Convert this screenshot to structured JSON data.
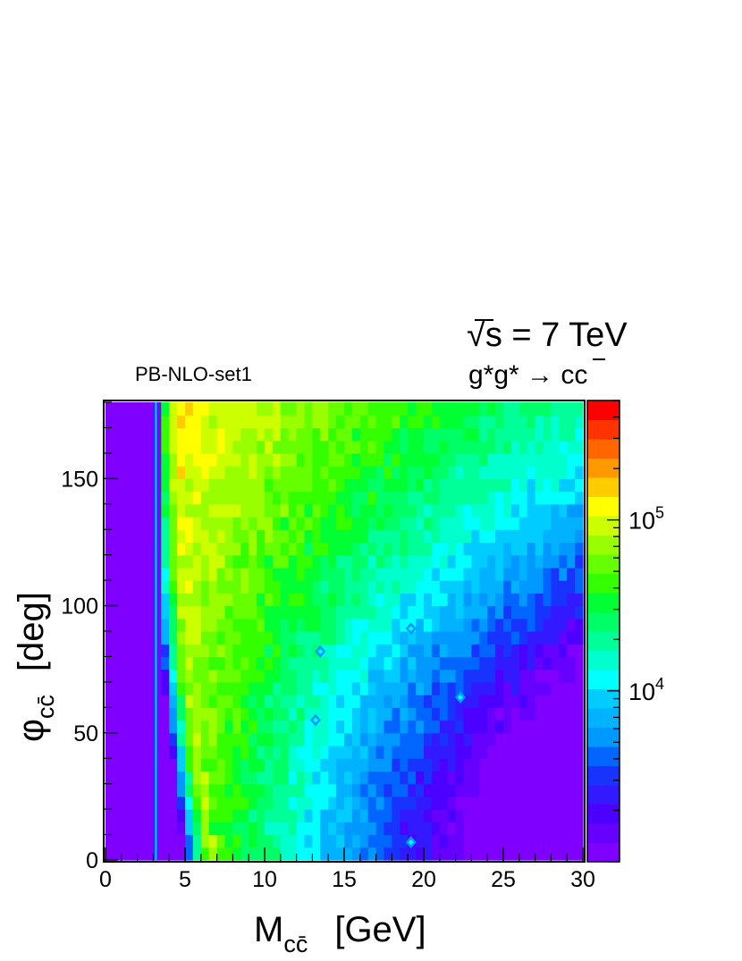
{
  "chart_data": {
    "type": "heatmap",
    "title": "√s = 7 TeV",
    "title_sqrt": "√",
    "title_rest": "s = 7 TeV",
    "subtitle_pre": "g*g* → c",
    "subtitle_bar": "c",
    "label_left": "PB-NLO-set1",
    "xlabel": "M",
    "xlabel_sub": "cc̄",
    "xlabel_unit": "[GeV]",
    "ylabel": "φ",
    "ylabel_sub": "cc̄",
    "ylabel_unit": "[deg]",
    "xlim": [
      0,
      30
    ],
    "ylim": [
      0,
      180
    ],
    "x_ticks": [
      0,
      5,
      10,
      15,
      20,
      25,
      30
    ],
    "y_ticks": [
      0,
      50,
      100,
      150
    ],
    "z_scale": "log",
    "zlim": [
      1000,
      500000
    ],
    "colorbar_labels": [
      {
        "value": 10000,
        "base": "10",
        "exp": "4"
      },
      {
        "value": 100000,
        "base": "10",
        "exp": "5"
      }
    ],
    "palette": [
      "#7f00ff",
      "#6600ff",
      "#4c00ff",
      "#3319ff",
      "#1933ff",
      "#0066ff",
      "#0099ff",
      "#00b2ff",
      "#00ccff",
      "#00ffff",
      "#00ffcc",
      "#00ff99",
      "#00ff66",
      "#00ff33",
      "#33ff00",
      "#66ff00",
      "#99ff00",
      "#ccff00",
      "#ffff00",
      "#ffcc00",
      "#ff9900",
      "#ff6600",
      "#ff3300",
      "#ff0000"
    ],
    "grid_nx": 60,
    "grid_ny": 36,
    "kinematic_threshold_x": 3.0,
    "peak_region": {
      "x": [
        4.5,
        7
      ],
      "y": [
        130,
        180
      ],
      "z": 120000
    },
    "cusp_points": [
      {
        "x": 13.5,
        "y": 82
      },
      {
        "x": 13.2,
        "y": 55
      },
      {
        "x": 19.2,
        "y": 91
      },
      {
        "x": 22.3,
        "y": 64
      },
      {
        "x": 19.2,
        "y": 7
      }
    ]
  }
}
